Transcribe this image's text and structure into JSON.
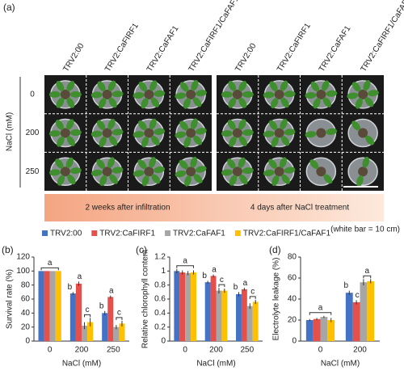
{
  "panel_a": {
    "label": "(a)",
    "columns": [
      "TRV2:00",
      "TRV2:CaFIRF1",
      "TRV2:CaFAF1",
      "TRV2:CaFIRF1/CaFAF1"
    ],
    "rows": [
      "0",
      "200",
      "250"
    ],
    "row_axis_label": "NaCl (mM)",
    "timeline": [
      "2 weeks after infiltration",
      "4 days after NaCl treatment"
    ],
    "scale_note": "(white bar = 10 cm)"
  },
  "legend": [
    {
      "name": "TRV2:00",
      "color": "#4472c4"
    },
    {
      "name": "TRV2:CaFIRF1",
      "color": "#e5504b"
    },
    {
      "name": "TRV2:CaFAF1",
      "color": "#a6a6a6"
    },
    {
      "name": "TRV2:CaFIRF1/CaFAF1",
      "color": "#ffc000"
    }
  ],
  "chart_data": [
    {
      "type": "bar",
      "panel": "(b)",
      "ylabel": "Survival rate (%)",
      "xlabel": "NaCl (mM)",
      "categories": [
        "0",
        "200",
        "250"
      ],
      "ylim": [
        0,
        120
      ],
      "yticks": [
        0,
        20,
        40,
        60,
        80,
        100,
        120
      ],
      "series": [
        {
          "values": [
            100,
            68,
            40
          ],
          "errors": [
            0,
            2,
            3
          ]
        },
        {
          "values": [
            100,
            82,
            63
          ],
          "errors": [
            0,
            3,
            2
          ]
        },
        {
          "values": [
            100,
            22,
            20
          ],
          "errors": [
            0,
            5,
            3
          ]
        },
        {
          "values": [
            100,
            27,
            25
          ],
          "errors": [
            0,
            6,
            4
          ]
        }
      ],
      "letters": [
        [
          "a"
        ],
        [
          "b",
          "a",
          "c"
        ],
        [
          "b",
          "a",
          "c"
        ]
      ]
    },
    {
      "type": "bar",
      "panel": "(c)",
      "ylabel": "Relative chlorophyll content",
      "xlabel": "NaCl (mM)",
      "categories": [
        "0",
        "200",
        "250"
      ],
      "ylim": [
        0,
        1.2
      ],
      "yticks": [
        0,
        0.2,
        0.4,
        0.6,
        0.8,
        1,
        1.2
      ],
      "series": [
        {
          "values": [
            1.0,
            0.84,
            0.67
          ],
          "errors": [
            0.03,
            0.02,
            0.03
          ]
        },
        {
          "values": [
            0.98,
            0.93,
            0.74
          ],
          "errors": [
            0.03,
            0.02,
            0.02
          ]
        },
        {
          "values": [
            0.97,
            0.72,
            0.5
          ],
          "errors": [
            0.03,
            0.04,
            0.04
          ]
        },
        {
          "values": [
            0.98,
            0.72,
            0.56
          ],
          "errors": [
            0.03,
            0.03,
            0.03
          ]
        }
      ],
      "letters": [
        [
          "a"
        ],
        [
          "b",
          "a",
          "c"
        ],
        [
          "b",
          "a",
          "c"
        ]
      ]
    },
    {
      "type": "bar",
      "panel": "(d)",
      "ylabel": "Electrolyte leakage (%)",
      "xlabel": "NaCl (mM)",
      "categories": [
        "0",
        "200"
      ],
      "ylim": [
        0,
        80
      ],
      "yticks": [
        0,
        20,
        40,
        60,
        80
      ],
      "series": [
        {
          "values": [
            20,
            46
          ],
          "errors": [
            1,
            2
          ]
        },
        {
          "values": [
            21,
            37
          ],
          "errors": [
            1,
            2
          ]
        },
        {
          "values": [
            23,
            56
          ],
          "errors": [
            1,
            3
          ]
        },
        {
          "values": [
            20,
            57
          ],
          "errors": [
            2,
            2
          ]
        }
      ],
      "letters": [
        [
          "a"
        ],
        [
          "b",
          "c",
          "a"
        ]
      ]
    }
  ]
}
